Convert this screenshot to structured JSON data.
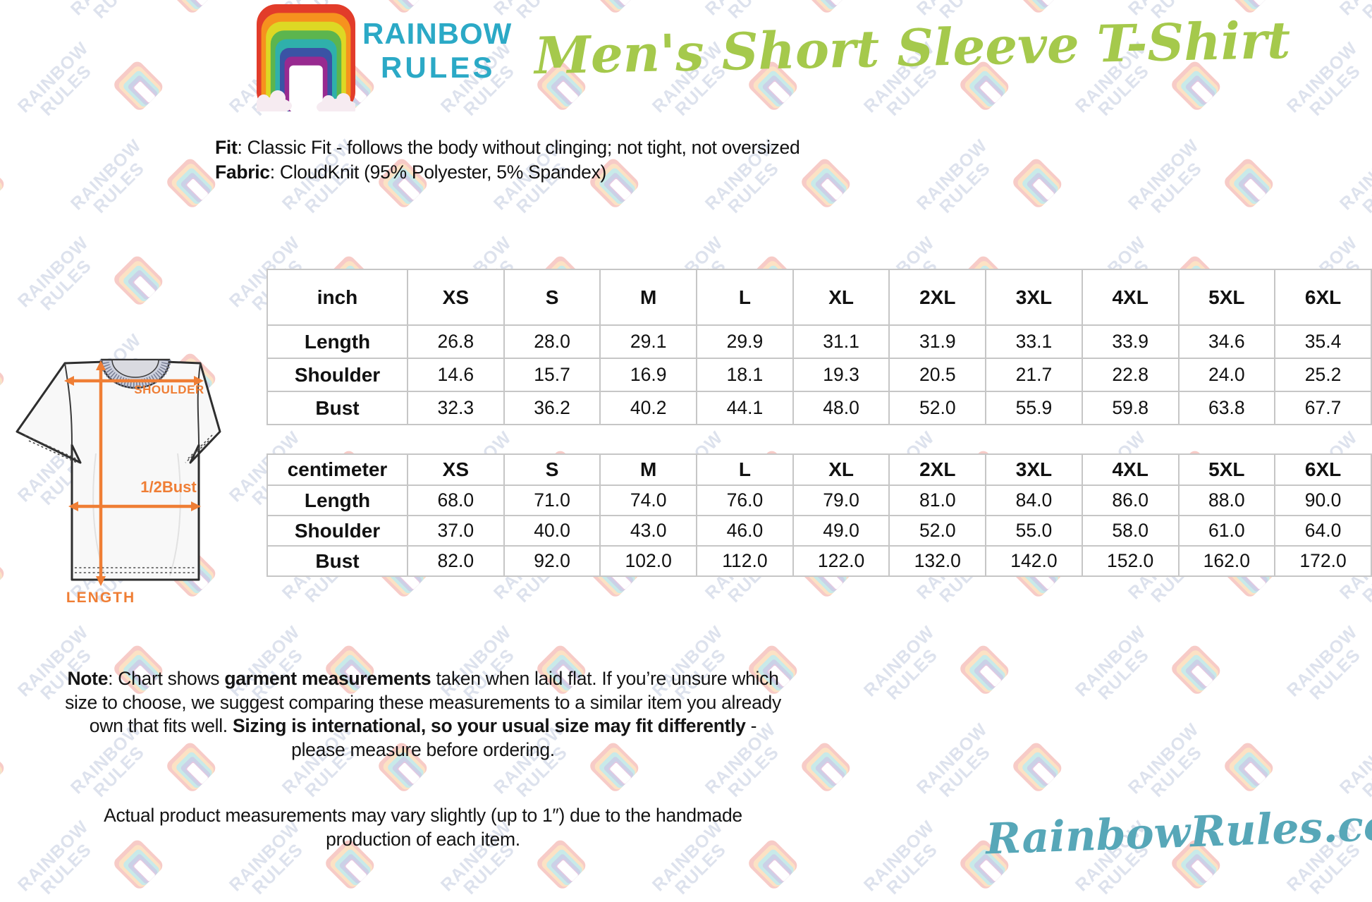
{
  "header": {
    "brand_line1": "RAINBOW",
    "brand_line2": "RULES",
    "title": "Men's Short Sleeve T-Shirt"
  },
  "description": {
    "fit_label": "Fit",
    "fit_text": ": Classic Fit - follows the body without clinging; not tight, not oversized",
    "fabric_label": "Fabric",
    "fabric_text": ": CloudKnit (95% Polyester, 5% Spandex)"
  },
  "sizes": [
    "XS",
    "S",
    "M",
    "L",
    "XL",
    "2XL",
    "3XL",
    "4XL",
    "5XL",
    "6XL"
  ],
  "tables": [
    {
      "id": "table-inch",
      "unit_label": "inch",
      "rows": [
        {
          "label": "Length",
          "values": [
            "26.8",
            "28.0",
            "29.1",
            "29.9",
            "31.1",
            "31.9",
            "33.1",
            "33.9",
            "34.6",
            "35.4"
          ]
        },
        {
          "label": "Shoulder",
          "values": [
            "14.6",
            "15.7",
            "16.9",
            "18.1",
            "19.3",
            "20.5",
            "21.7",
            "22.8",
            "24.0",
            "25.2"
          ]
        },
        {
          "label": "Bust",
          "values": [
            "32.3",
            "36.2",
            "40.2",
            "44.1",
            "48.0",
            "52.0",
            "55.9",
            "59.8",
            "63.8",
            "67.7"
          ]
        }
      ]
    },
    {
      "id": "table-cm",
      "unit_label": "centimeter",
      "rows": [
        {
          "label": "Length",
          "values": [
            "68.0",
            "71.0",
            "74.0",
            "76.0",
            "79.0",
            "81.0",
            "84.0",
            "86.0",
            "88.0",
            "90.0"
          ]
        },
        {
          "label": "Shoulder",
          "values": [
            "37.0",
            "40.0",
            "43.0",
            "46.0",
            "49.0",
            "52.0",
            "55.0",
            "58.0",
            "61.0",
            "64.0"
          ]
        },
        {
          "label": "Bust",
          "values": [
            "82.0",
            "92.0",
            "102.0",
            "112.0",
            "122.0",
            "132.0",
            "142.0",
            "152.0",
            "162.0",
            "172.0"
          ]
        }
      ]
    }
  ],
  "diagram": {
    "shoulder_label": "SHOULDER",
    "bust_label": "1/2Bust",
    "length_label": "LENGTH"
  },
  "note": {
    "bold1": "Note",
    "t1": ": Chart shows ",
    "bold2": "garment measurements",
    "t2": " taken when laid flat. If you’re unsure which size to choose, we suggest comparing these measurements to a similar item you already own that fits well. ",
    "bold3": "Sizing is international, so your usual size may fit differently",
    "t3": " - please measure before ordering."
  },
  "note2": "Actual product measurements may vary slightly (up to 1″) due to the handmade production of each item.",
  "footer": {
    "site": "RainbowRules.com"
  },
  "watermark": {
    "line1": "RAINBOW",
    "line2": "RULES"
  },
  "colors": {
    "brand_teal": "#2ba9c6",
    "title_green": "#a5c94c",
    "footer_teal": "#57a7b8",
    "accent_orange": "#ef7e35",
    "table_border": "#c6c6c6",
    "rainbow": [
      "#e23c2a",
      "#f6921e",
      "#ddd824",
      "#5cb54e",
      "#2fb0ab",
      "#3a53a5",
      "#982a90"
    ],
    "cloud": "#f6ebf1"
  }
}
